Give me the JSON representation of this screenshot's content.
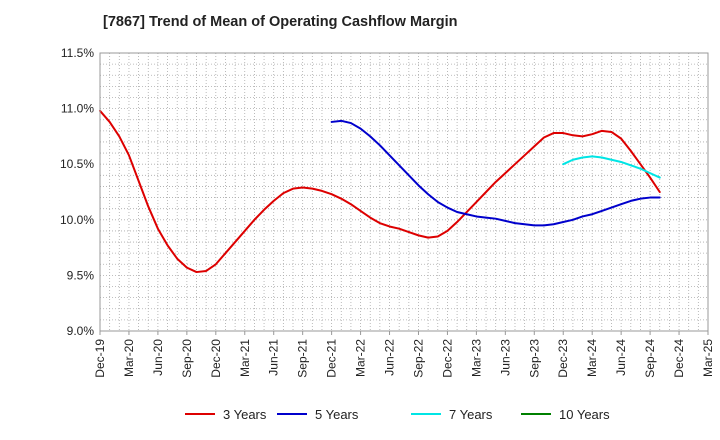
{
  "chart_data": {
    "type": "line",
    "title": "[7867]  Trend of Mean of Operating Cashflow Margin",
    "xlabel": "",
    "ylabel": "",
    "x_ticks": [
      "Dec-19",
      "Mar-20",
      "Jun-20",
      "Sep-20",
      "Dec-20",
      "Mar-21",
      "Jun-21",
      "Sep-21",
      "Dec-21",
      "Mar-22",
      "Jun-22",
      "Sep-22",
      "Dec-22",
      "Mar-23",
      "Jun-23",
      "Sep-23",
      "Dec-23",
      "Mar-24",
      "Jun-24",
      "Sep-24",
      "Dec-24",
      "Mar-25"
    ],
    "y_ticks": [
      "9.0%",
      "9.5%",
      "10.0%",
      "10.5%",
      "11.0%",
      "11.5%"
    ],
    "ylim": [
      9.0,
      11.5
    ],
    "grid": "dotted",
    "legend_position": "bottom",
    "series": [
      {
        "name": "3 Years",
        "color": "#dd0000",
        "points": [
          [
            "Dec-19",
            10.98
          ],
          [
            "Jan-20",
            10.88
          ],
          [
            "Feb-20",
            10.75
          ],
          [
            "Mar-20",
            10.58
          ],
          [
            "Apr-20",
            10.35
          ],
          [
            "May-20",
            10.12
          ],
          [
            "Jun-20",
            9.92
          ],
          [
            "Jul-20",
            9.77
          ],
          [
            "Aug-20",
            9.65
          ],
          [
            "Sep-20",
            9.57
          ],
          [
            "Oct-20",
            9.53
          ],
          [
            "Nov-20",
            9.54
          ],
          [
            "Dec-20",
            9.6
          ],
          [
            "Jan-21",
            9.7
          ],
          [
            "Feb-21",
            9.8
          ],
          [
            "Mar-21",
            9.9
          ],
          [
            "Apr-21",
            10.0
          ],
          [
            "May-21",
            10.09
          ],
          [
            "Jun-21",
            10.17
          ],
          [
            "Jul-21",
            10.24
          ],
          [
            "Aug-21",
            10.28
          ],
          [
            "Sep-21",
            10.29
          ],
          [
            "Oct-21",
            10.28
          ],
          [
            "Nov-21",
            10.26
          ],
          [
            "Dec-21",
            10.23
          ],
          [
            "Jan-22",
            10.19
          ],
          [
            "Feb-22",
            10.14
          ],
          [
            "Mar-22",
            10.08
          ],
          [
            "Apr-22",
            10.02
          ],
          [
            "May-22",
            9.97
          ],
          [
            "Jun-22",
            9.94
          ],
          [
            "Jul-22",
            9.92
          ],
          [
            "Aug-22",
            9.89
          ],
          [
            "Sep-22",
            9.86
          ],
          [
            "Oct-22",
            9.84
          ],
          [
            "Nov-22",
            9.85
          ],
          [
            "Dec-22",
            9.9
          ],
          [
            "Jan-23",
            9.98
          ],
          [
            "Feb-23",
            10.07
          ],
          [
            "Mar-23",
            10.16
          ],
          [
            "Apr-23",
            10.25
          ],
          [
            "May-23",
            10.34
          ],
          [
            "Jun-23",
            10.42
          ],
          [
            "Jul-23",
            10.5
          ],
          [
            "Aug-23",
            10.58
          ],
          [
            "Sep-23",
            10.66
          ],
          [
            "Oct-23",
            10.74
          ],
          [
            "Nov-23",
            10.78
          ],
          [
            "Dec-23",
            10.78
          ],
          [
            "Jan-24",
            10.76
          ],
          [
            "Feb-24",
            10.75
          ],
          [
            "Mar-24",
            10.77
          ],
          [
            "Apr-24",
            10.8
          ],
          [
            "May-24",
            10.79
          ],
          [
            "Jun-24",
            10.73
          ],
          [
            "Jul-24",
            10.62
          ],
          [
            "Aug-24",
            10.5
          ],
          [
            "Sep-24",
            10.38
          ],
          [
            "Oct-24",
            10.25
          ]
        ]
      },
      {
        "name": "5 Years",
        "color": "#0000cc",
        "points": [
          [
            "Dec-21",
            10.88
          ],
          [
            "Jan-22",
            10.89
          ],
          [
            "Feb-22",
            10.87
          ],
          [
            "Mar-22",
            10.82
          ],
          [
            "Apr-22",
            10.75
          ],
          [
            "May-22",
            10.67
          ],
          [
            "Jun-22",
            10.58
          ],
          [
            "Jul-22",
            10.49
          ],
          [
            "Aug-22",
            10.4
          ],
          [
            "Sep-22",
            10.31
          ],
          [
            "Oct-22",
            10.23
          ],
          [
            "Nov-22",
            10.16
          ],
          [
            "Dec-22",
            10.11
          ],
          [
            "Jan-23",
            10.07
          ],
          [
            "Feb-23",
            10.05
          ],
          [
            "Mar-23",
            10.03
          ],
          [
            "Apr-23",
            10.02
          ],
          [
            "May-23",
            10.01
          ],
          [
            "Jun-23",
            9.99
          ],
          [
            "Jul-23",
            9.97
          ],
          [
            "Aug-23",
            9.96
          ],
          [
            "Sep-23",
            9.95
          ],
          [
            "Oct-23",
            9.95
          ],
          [
            "Nov-23",
            9.96
          ],
          [
            "Dec-23",
            9.98
          ],
          [
            "Jan-24",
            10.0
          ],
          [
            "Feb-24",
            10.03
          ],
          [
            "Mar-24",
            10.05
          ],
          [
            "Apr-24",
            10.08
          ],
          [
            "May-24",
            10.11
          ],
          [
            "Jun-24",
            10.14
          ],
          [
            "Jul-24",
            10.17
          ],
          [
            "Aug-24",
            10.19
          ],
          [
            "Sep-24",
            10.2
          ],
          [
            "Oct-24",
            10.2
          ]
        ]
      },
      {
        "name": "7 Years",
        "color": "#00e5e5",
        "points": [
          [
            "Dec-23",
            10.5
          ],
          [
            "Jan-24",
            10.54
          ],
          [
            "Feb-24",
            10.56
          ],
          [
            "Mar-24",
            10.57
          ],
          [
            "Apr-24",
            10.56
          ],
          [
            "May-24",
            10.54
          ],
          [
            "Jun-24",
            10.52
          ],
          [
            "Jul-24",
            10.49
          ],
          [
            "Aug-24",
            10.46
          ],
          [
            "Sep-24",
            10.42
          ],
          [
            "Oct-24",
            10.38
          ]
        ]
      },
      {
        "name": "10 Years",
        "color": "#008000",
        "points": []
      }
    ]
  }
}
